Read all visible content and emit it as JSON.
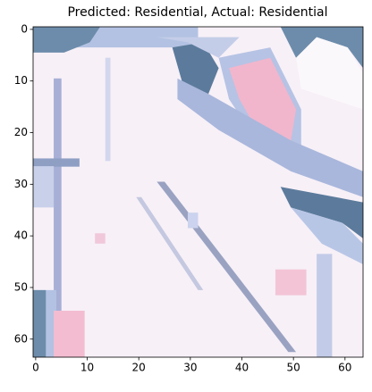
{
  "chart_data": {
    "type": "image",
    "title": "Predicted: Residential, Actual: Residential",
    "xlim": [
      -0.5,
      63.5
    ],
    "ylim": [
      63.5,
      -0.5
    ],
    "xticks": [
      0,
      10,
      20,
      30,
      40,
      50,
      60
    ],
    "yticks": [
      0,
      10,
      20,
      30,
      40,
      50,
      60
    ]
  }
}
